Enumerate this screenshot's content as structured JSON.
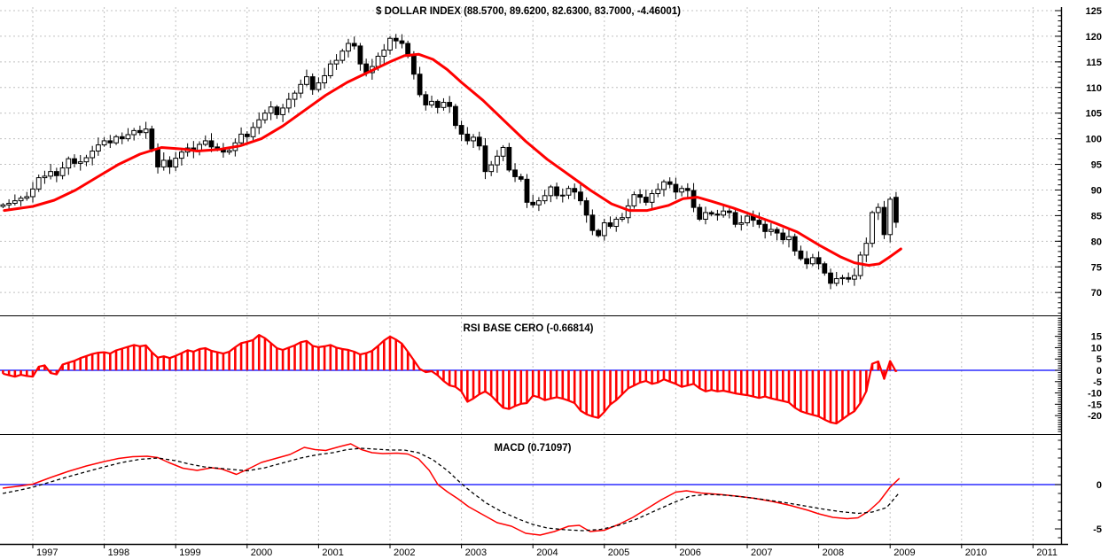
{
  "page": {
    "background": "#ffffff"
  },
  "colors": {
    "series_red": "#ff0000",
    "zero_line_blue": "#0000ff",
    "grid_gray": "#c0c0c0",
    "axis_black": "#000000",
    "candle_up_fill": "#ffffff",
    "candle_down_fill": "#000000"
  },
  "x_axis": {
    "years": [
      1997,
      1998,
      1999,
      2000,
      2001,
      2002,
      2003,
      2004,
      2005,
      2006,
      2007,
      2008,
      2009,
      2010,
      2011
    ]
  },
  "chart_data": [
    {
      "type": "candlestick",
      "panel": "price",
      "title": "$ DOLLAR INDEX (88.5700, 89.6200, 82.6300, 83.7000, -4.46001)",
      "interval": "monthly",
      "start_time": 1996.5833,
      "first_open": 86.8,
      "closes": [
        87.1,
        87.4,
        87.9,
        88.4,
        88.7,
        90.2,
        92.4,
        92.7,
        93.6,
        92.8,
        94.3,
        96.1,
        95.2,
        95.5,
        96.3,
        97.6,
        98.8,
        99.6,
        99.2,
        100.4,
        100.0,
        100.8,
        101.6,
        101.2,
        101.9,
        98.0,
        94.5,
        95.8,
        94.5,
        96.2,
        97.4,
        98.2,
        97.7,
        98.9,
        99.6,
        98.4,
        98.0,
        97.4,
        97.7,
        99.2,
        100.9,
        100.4,
        102.2,
        103.7,
        105.0,
        106.2,
        104.7,
        106.0,
        107.7,
        108.9,
        110.6,
        112.1,
        109.6,
        110.9,
        112.3,
        114.6,
        115.3,
        117.1,
        118.6,
        118.1,
        114.6,
        112.9,
        114.1,
        116.1,
        117.3,
        119.6,
        119.1,
        118.6,
        116.1,
        112.6,
        108.6,
        106.6,
        107.3,
        106.1,
        107.1,
        106.3,
        102.6,
        100.9,
        99.6,
        100.3,
        98.6,
        93.6,
        94.9,
        96.6,
        98.3,
        93.9,
        92.6,
        92.1,
        87.6,
        87.1,
        87.9,
        88.9,
        90.6,
        88.9,
        89.0,
        90.3,
        89.6,
        87.9,
        85.1,
        82.1,
        81.1,
        83.6,
        82.9,
        84.3,
        84.6,
        86.9,
        89.1,
        88.6,
        87.6,
        89.3,
        90.1,
        91.6,
        91.1,
        89.6,
        90.3,
        89.9,
        86.6,
        84.3,
        85.6,
        85.3,
        85.1,
        85.9,
        85.6,
        83.3,
        83.6,
        84.9,
        84.1,
        83.3,
        81.9,
        82.3,
        81.6,
        80.3,
        80.9,
        78.1,
        76.6,
        75.6,
        76.8,
        75.6,
        73.8,
        71.8,
        72.7,
        72.9,
        72.6,
        73.3,
        77.3,
        79.6,
        85.6,
        86.6,
        81.3,
        88.2,
        83.7
      ],
      "last_bar": {
        "open": 88.57,
        "high": 89.62,
        "low": 82.63,
        "close": 83.7,
        "change": -4.46001
      },
      "overlay_ma": {
        "name": "moving-average",
        "color": "#ff0000",
        "points": [
          [
            1996.6,
            86.0
          ],
          [
            1997.0,
            86.8
          ],
          [
            1997.3,
            88.0
          ],
          [
            1997.6,
            90.0
          ],
          [
            1997.9,
            92.5
          ],
          [
            1998.2,
            95.0
          ],
          [
            1998.5,
            97.0
          ],
          [
            1998.8,
            98.3
          ],
          [
            1999.1,
            98.0
          ],
          [
            1999.3,
            97.6
          ],
          [
            1999.6,
            97.9
          ],
          [
            1999.9,
            98.6
          ],
          [
            2000.2,
            100.0
          ],
          [
            2000.5,
            102.5
          ],
          [
            2000.8,
            105.5
          ],
          [
            2001.1,
            108.5
          ],
          [
            2001.4,
            111.0
          ],
          [
            2001.7,
            113.0
          ],
          [
            2002.0,
            115.0
          ],
          [
            2002.2,
            116.2
          ],
          [
            2002.4,
            116.5
          ],
          [
            2002.6,
            115.5
          ],
          [
            2002.8,
            113.5
          ],
          [
            2003.0,
            111.0
          ],
          [
            2003.3,
            107.5
          ],
          [
            2003.6,
            103.5
          ],
          [
            2003.9,
            99.5
          ],
          [
            2004.2,
            96.0
          ],
          [
            2004.5,
            93.0
          ],
          [
            2004.8,
            90.0
          ],
          [
            2005.1,
            87.3
          ],
          [
            2005.35,
            86.0
          ],
          [
            2005.6,
            86.0
          ],
          [
            2005.9,
            87.0
          ],
          [
            2006.1,
            88.3
          ],
          [
            2006.3,
            88.6
          ],
          [
            2006.5,
            87.8
          ],
          [
            2006.8,
            86.5
          ],
          [
            2007.1,
            85.0
          ],
          [
            2007.4,
            83.5
          ],
          [
            2007.7,
            81.8
          ],
          [
            2008.0,
            79.3
          ],
          [
            2008.3,
            77.0
          ],
          [
            2008.5,
            75.8
          ],
          [
            2008.7,
            75.3
          ],
          [
            2008.85,
            75.6
          ],
          [
            2009.0,
            77.0
          ],
          [
            2009.15,
            78.5
          ]
        ]
      },
      "y_ticks": [
        125,
        120,
        115,
        110,
        105,
        100,
        95,
        90,
        85,
        80,
        75,
        70
      ],
      "ylim": [
        65.5,
        125.7
      ],
      "grid": "horizontal-and-vertical-dashed"
    },
    {
      "type": "bar",
      "panel": "rsi",
      "title": "RSI BASE CERO (-0.66814)",
      "interval": "monthly",
      "start_time": 1996.5833,
      "bar_color": "#ff0000",
      "zero_line_color": "#0000ff",
      "values": [
        -1.5,
        -2.2,
        -2.8,
        -2.0,
        -2.5,
        -2.8,
        1.6,
        2.2,
        -1.2,
        -1.8,
        2.5,
        3.4,
        4.2,
        5.4,
        6.3,
        7.2,
        7.8,
        8.0,
        7.4,
        8.8,
        9.6,
        10.4,
        11.2,
        10.6,
        11.0,
        8.0,
        5.6,
        6.2,
        5.4,
        6.4,
        7.6,
        8.9,
        8.2,
        9.4,
        9.8,
        8.6,
        8.0,
        7.4,
        8.2,
        10.2,
        12.0,
        12.6,
        13.4,
        15.6,
        14.2,
        12.0,
        9.8,
        9.0,
        10.0,
        11.0,
        12.4,
        13.0,
        10.8,
        10.2,
        10.6,
        11.2,
        10.0,
        9.4,
        9.0,
        8.2,
        7.0,
        7.6,
        8.6,
        10.8,
        13.2,
        14.9,
        13.6,
        11.8,
        8.2,
        4.4,
        0.6,
        -0.8,
        -0.4,
        -2.2,
        -4.7,
        -6.7,
        -7.3,
        -9.3,
        -13.9,
        -12.5,
        -10.6,
        -9.3,
        -11.2,
        -13.9,
        -16.5,
        -17.1,
        -15.8,
        -14.8,
        -14.5,
        -11.2,
        -11.9,
        -13.2,
        -12.5,
        -11.9,
        -12.5,
        -13.4,
        -14.5,
        -17.8,
        -19.4,
        -20.4,
        -21.0,
        -18.4,
        -15.1,
        -13.2,
        -10.6,
        -8.0,
        -6.7,
        -5.4,
        -4.7,
        -6.0,
        -5.4,
        -4.0,
        -5.0,
        -6.0,
        -7.3,
        -6.7,
        -6.0,
        -8.0,
        -9.3,
        -8.7,
        -9.3,
        -9.0,
        -9.6,
        -10.2,
        -10.6,
        -11.0,
        -11.6,
        -12.2,
        -11.6,
        -12.4,
        -13.0,
        -13.6,
        -14.2,
        -16.5,
        -18.1,
        -19.0,
        -19.7,
        -20.4,
        -21.8,
        -23.0,
        -23.5,
        -21.6,
        -19.7,
        -18.1,
        -14.5,
        -9.3,
        2.9,
        3.9,
        -3.8,
        4.1,
        -0.67
      ],
      "y_ticks": [
        15,
        10,
        5,
        0,
        -5,
        -10,
        -15,
        -20
      ],
      "ylim": [
        -28,
        24
      ],
      "last_value": -0.66814
    },
    {
      "type": "line",
      "panel": "macd",
      "title": "MACD (0.71097)",
      "zero_line_color": "#0000ff",
      "y_ticks": [
        0,
        -5
      ],
      "ylim": [
        -6.7,
        5.7
      ],
      "last_value": 0.71097,
      "series": [
        {
          "name": "macd-line",
          "color": "#ff0000",
          "style": "solid",
          "points": [
            [
              1996.58,
              -0.4
            ],
            [
              1996.83,
              -0.15
            ],
            [
              1997.0,
              0.05
            ],
            [
              1997.25,
              0.8
            ],
            [
              1997.5,
              1.5
            ],
            [
              1997.75,
              2.1
            ],
            [
              1998.0,
              2.6
            ],
            [
              1998.2,
              2.95
            ],
            [
              1998.4,
              3.15
            ],
            [
              1998.6,
              3.2
            ],
            [
              1998.75,
              3.05
            ],
            [
              1998.9,
              2.5
            ],
            [
              1999.1,
              1.85
            ],
            [
              1999.3,
              1.6
            ],
            [
              1999.5,
              1.9
            ],
            [
              1999.65,
              1.75
            ],
            [
              1999.85,
              1.15
            ],
            [
              2000.0,
              1.7
            ],
            [
              2000.2,
              2.5
            ],
            [
              2000.4,
              2.95
            ],
            [
              2000.6,
              3.4
            ],
            [
              2000.8,
              4.2
            ],
            [
              2000.95,
              3.95
            ],
            [
              2001.1,
              3.85
            ],
            [
              2001.3,
              4.3
            ],
            [
              2001.45,
              4.6
            ],
            [
              2001.6,
              3.95
            ],
            [
              2001.75,
              3.6
            ],
            [
              2001.9,
              3.5
            ],
            [
              2002.1,
              3.55
            ],
            [
              2002.25,
              3.45
            ],
            [
              2002.4,
              2.9
            ],
            [
              2002.55,
              1.6
            ],
            [
              2002.67,
              0.0
            ],
            [
              2002.8,
              -0.8
            ],
            [
              2002.95,
              -1.6
            ],
            [
              2003.1,
              -2.5
            ],
            [
              2003.3,
              -3.4
            ],
            [
              2003.5,
              -4.3
            ],
            [
              2003.7,
              -4.7
            ],
            [
              2003.9,
              -5.5
            ],
            [
              2004.1,
              -5.7
            ],
            [
              2004.3,
              -5.3
            ],
            [
              2004.5,
              -4.7
            ],
            [
              2004.65,
              -4.6
            ],
            [
              2004.8,
              -5.3
            ],
            [
              2005.0,
              -5.15
            ],
            [
              2005.2,
              -4.5
            ],
            [
              2005.4,
              -3.7
            ],
            [
              2005.6,
              -2.7
            ],
            [
              2005.8,
              -1.7
            ],
            [
              2006.0,
              -0.85
            ],
            [
              2006.15,
              -0.7
            ],
            [
              2006.35,
              -0.95
            ],
            [
              2006.6,
              -1.1
            ],
            [
              2006.85,
              -1.3
            ],
            [
              2007.1,
              -1.55
            ],
            [
              2007.35,
              -1.9
            ],
            [
              2007.6,
              -2.35
            ],
            [
              2007.85,
              -2.9
            ],
            [
              2008.0,
              -3.3
            ],
            [
              2008.2,
              -3.7
            ],
            [
              2008.4,
              -3.85
            ],
            [
              2008.55,
              -3.75
            ],
            [
              2008.7,
              -3.0
            ],
            [
              2008.85,
              -1.9
            ],
            [
              2009.0,
              -0.3
            ],
            [
              2009.13,
              0.71
            ]
          ]
        },
        {
          "name": "signal-line",
          "color": "#000000",
          "style": "dashed",
          "points": [
            [
              1996.58,
              -1.0
            ],
            [
              1996.83,
              -0.6
            ],
            [
              1997.0,
              -0.3
            ],
            [
              1997.25,
              0.3
            ],
            [
              1997.5,
              0.9
            ],
            [
              1997.75,
              1.45
            ],
            [
              1998.0,
              2.0
            ],
            [
              1998.25,
              2.5
            ],
            [
              1998.5,
              2.85
            ],
            [
              1998.75,
              3.0
            ],
            [
              1999.0,
              2.7
            ],
            [
              1999.2,
              2.3
            ],
            [
              1999.4,
              2.0
            ],
            [
              1999.6,
              1.85
            ],
            [
              1999.8,
              1.7
            ],
            [
              2000.0,
              1.55
            ],
            [
              2000.25,
              1.9
            ],
            [
              2000.5,
              2.45
            ],
            [
              2000.75,
              3.0
            ],
            [
              2001.0,
              3.4
            ],
            [
              2001.2,
              3.6
            ],
            [
              2001.4,
              3.95
            ],
            [
              2001.6,
              4.1
            ],
            [
              2001.8,
              4.0
            ],
            [
              2002.0,
              3.9
            ],
            [
              2002.2,
              3.9
            ],
            [
              2002.4,
              3.6
            ],
            [
              2002.6,
              2.8
            ],
            [
              2002.8,
              1.6
            ],
            [
              2003.0,
              0.1
            ],
            [
              2003.15,
              -0.9
            ],
            [
              2003.35,
              -2.1
            ],
            [
              2003.55,
              -3.0
            ],
            [
              2003.8,
              -3.9
            ],
            [
              2004.0,
              -4.5
            ],
            [
              2004.2,
              -4.9
            ],
            [
              2004.45,
              -5.1
            ],
            [
              2004.7,
              -5.2
            ],
            [
              2004.95,
              -5.05
            ],
            [
              2005.2,
              -4.6
            ],
            [
              2005.45,
              -3.9
            ],
            [
              2005.7,
              -3.0
            ],
            [
              2005.95,
              -2.1
            ],
            [
              2006.2,
              -1.3
            ],
            [
              2006.45,
              -1.1
            ],
            [
              2006.7,
              -1.2
            ],
            [
              2006.95,
              -1.4
            ],
            [
              2007.2,
              -1.65
            ],
            [
              2007.5,
              -2.0
            ],
            [
              2007.8,
              -2.4
            ],
            [
              2008.05,
              -2.75
            ],
            [
              2008.3,
              -3.05
            ],
            [
              2008.55,
              -3.25
            ],
            [
              2008.75,
              -3.1
            ],
            [
              2008.95,
              -2.6
            ],
            [
              2009.13,
              -0.9
            ]
          ]
        }
      ]
    }
  ]
}
